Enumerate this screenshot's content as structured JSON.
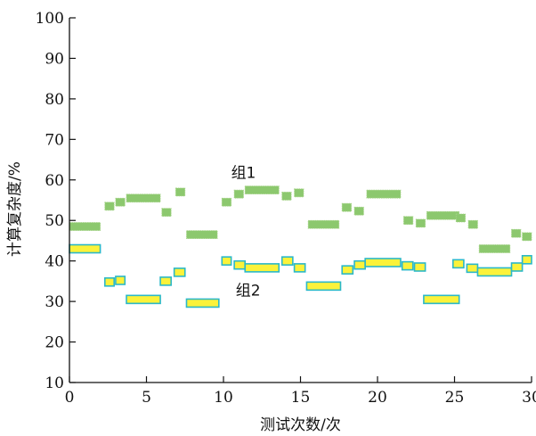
{
  "chart_data": {
    "type": "scatter",
    "title": "",
    "xlabel": "测试次数/次",
    "ylabel": "计算复杂度/%",
    "xlim": [
      0,
      30
    ],
    "ylim": [
      10,
      100
    ],
    "xticks": [
      0,
      5,
      10,
      15,
      20,
      25,
      30
    ],
    "yticks": [
      10,
      20,
      30,
      40,
      50,
      60,
      70,
      80,
      90,
      100
    ],
    "grid": false,
    "annotations": [
      {
        "text": "组1",
        "x": 11.3,
        "y": 60.5
      },
      {
        "text": "组2",
        "x": 11.6,
        "y": 31.5
      }
    ],
    "series": [
      {
        "color": "#8cc86e",
        "outline": "#a7d48a",
        "segments": [
          {
            "x0": 0,
            "x1": 2,
            "y": 48.5
          },
          {
            "x0": 2.3,
            "x1": 2.9,
            "y": 53.5
          },
          {
            "x0": 3.0,
            "x1": 3.6,
            "y": 54.5
          },
          {
            "x0": 3.7,
            "x1": 5.9,
            "y": 55.5
          },
          {
            "x0": 6.0,
            "x1": 6.6,
            "y": 52.0
          },
          {
            "x0": 6.9,
            "x1": 7.5,
            "y": 57.0
          },
          {
            "x0": 7.6,
            "x1": 9.6,
            "y": 46.5
          },
          {
            "x0": 9.9,
            "x1": 10.5,
            "y": 54.5
          },
          {
            "x0": 10.7,
            "x1": 11.3,
            "y": 56.5
          },
          {
            "x0": 11.4,
            "x1": 13.6,
            "y": 57.5
          },
          {
            "x0": 13.8,
            "x1": 14.4,
            "y": 56.0
          },
          {
            "x0": 14.6,
            "x1": 15.2,
            "y": 56.8
          },
          {
            "x0": 15.5,
            "x1": 17.5,
            "y": 49.0
          },
          {
            "x0": 17.7,
            "x1": 18.3,
            "y": 53.2
          },
          {
            "x0": 18.5,
            "x1": 19.1,
            "y": 52.3
          },
          {
            "x0": 19.3,
            "x1": 21.5,
            "y": 56.5
          },
          {
            "x0": 21.7,
            "x1": 22.3,
            "y": 50.0
          },
          {
            "x0": 22.5,
            "x1": 23.1,
            "y": 49.3
          },
          {
            "x0": 23.2,
            "x1": 25.3,
            "y": 51.2
          },
          {
            "x0": 25.1,
            "x1": 25.7,
            "y": 50.6
          },
          {
            "x0": 25.9,
            "x1": 26.5,
            "y": 49.0
          },
          {
            "x0": 26.6,
            "x1": 28.6,
            "y": 43.0
          },
          {
            "x0": 28.7,
            "x1": 29.3,
            "y": 46.8
          },
          {
            "x0": 29.4,
            "x1": 30.0,
            "y": 46.0
          }
        ]
      },
      {
        "color": "#fbf23a",
        "outline": "#2bb8c8",
        "segments": [
          {
            "x0": 0,
            "x1": 2,
            "y": 43.0
          },
          {
            "x0": 2.3,
            "x1": 2.9,
            "y": 34.8
          },
          {
            "x0": 3.0,
            "x1": 3.6,
            "y": 35.2
          },
          {
            "x0": 3.7,
            "x1": 5.9,
            "y": 30.5
          },
          {
            "x0": 5.9,
            "x1": 6.6,
            "y": 35.0
          },
          {
            "x0": 6.8,
            "x1": 7.5,
            "y": 37.2
          },
          {
            "x0": 7.6,
            "x1": 9.7,
            "y": 29.6
          },
          {
            "x0": 9.9,
            "x1": 10.5,
            "y": 40.0
          },
          {
            "x0": 10.7,
            "x1": 11.4,
            "y": 39.0
          },
          {
            "x0": 11.4,
            "x1": 13.6,
            "y": 38.3
          },
          {
            "x0": 13.8,
            "x1": 14.5,
            "y": 40.0
          },
          {
            "x0": 14.6,
            "x1": 15.3,
            "y": 38.3
          },
          {
            "x0": 15.4,
            "x1": 17.6,
            "y": 33.8
          },
          {
            "x0": 17.7,
            "x1": 18.4,
            "y": 37.8
          },
          {
            "x0": 18.5,
            "x1": 19.2,
            "y": 39.0
          },
          {
            "x0": 19.2,
            "x1": 21.5,
            "y": 39.6
          },
          {
            "x0": 21.6,
            "x1": 22.3,
            "y": 38.8
          },
          {
            "x0": 22.4,
            "x1": 23.1,
            "y": 38.5
          },
          {
            "x0": 23.0,
            "x1": 25.3,
            "y": 30.5
          },
          {
            "x0": 24.9,
            "x1": 25.6,
            "y": 39.3
          },
          {
            "x0": 25.8,
            "x1": 26.5,
            "y": 38.2
          },
          {
            "x0": 26.5,
            "x1": 28.7,
            "y": 37.3
          },
          {
            "x0": 28.7,
            "x1": 29.4,
            "y": 38.5
          },
          {
            "x0": 29.4,
            "x1": 30.0,
            "y": 40.3
          }
        ]
      }
    ]
  }
}
